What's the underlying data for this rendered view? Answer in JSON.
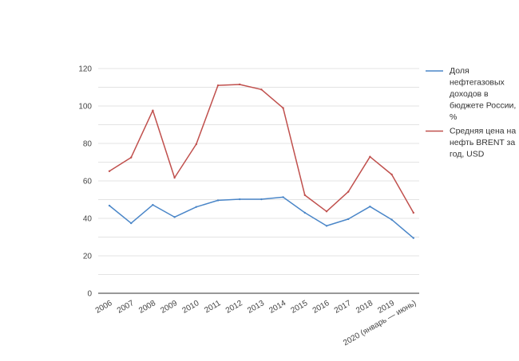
{
  "chart_data": {
    "type": "line",
    "categories": [
      "2006",
      "2007",
      "2008",
      "2009",
      "2010",
      "2011",
      "2012",
      "2013",
      "2014",
      "2015",
      "2016",
      "2017",
      "2018",
      "2019",
      "2020 (январь — июнь)"
    ],
    "series": [
      {
        "name": "Доля нефтегазовых доходов в бюджете России, %",
        "name_lines": [
          "Доля",
          "нефтегазовых",
          "доходов в",
          "бюджете России,",
          "%"
        ],
        "color": "#4a86c8",
        "values": [
          46.8,
          37.4,
          47.2,
          40.7,
          46.1,
          49.6,
          50.2,
          50.2,
          51.3,
          43.0,
          36.0,
          39.6,
          46.3,
          39.3,
          29.5
        ]
      },
      {
        "name": "Средняя цена на нефть BRENT за год, USD",
        "name_lines": [
          "Средняя цена на",
          "нефть BRENT за",
          "год, USD"
        ],
        "color": "#c0504d",
        "values": [
          65.2,
          72.5,
          97.6,
          61.7,
          79.6,
          111.0,
          111.5,
          108.8,
          98.9,
          52.4,
          43.7,
          54.2,
          72.9,
          63.4,
          43.0
        ]
      }
    ],
    "y_ticks": [
      "0",
      "20",
      "40",
      "60",
      "80",
      "100",
      "120"
    ],
    "ylim": [
      0,
      120
    ],
    "grid": true,
    "legend": "right",
    "title": "",
    "xlabel": "",
    "ylabel": ""
  }
}
